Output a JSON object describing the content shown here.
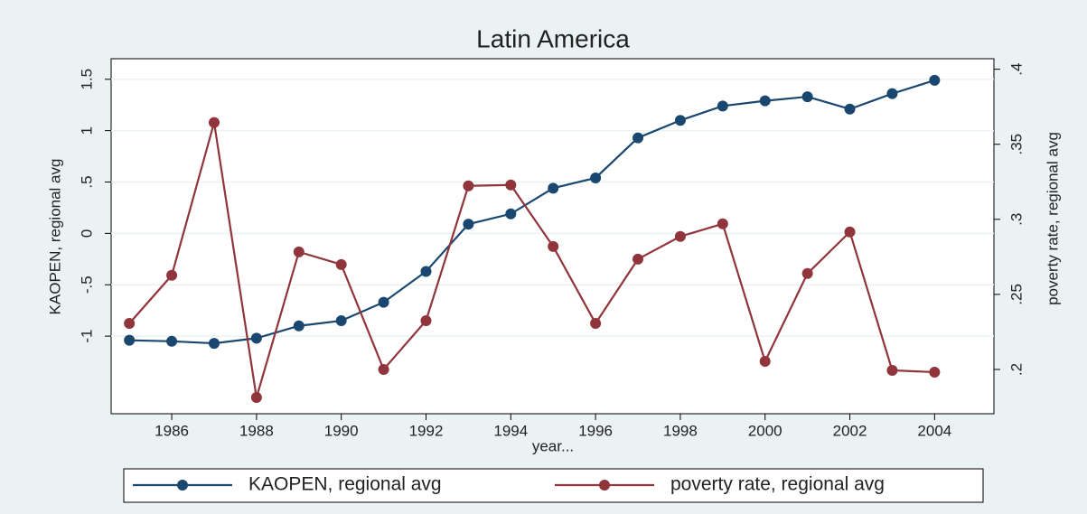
{
  "chart_data": {
    "type": "line",
    "title": "Latin America",
    "x_label": "year...",
    "x": [
      1985,
      1986,
      1987,
      1988,
      1989,
      1990,
      1991,
      1992,
      1993,
      1994,
      1995,
      1996,
      1997,
      1998,
      1999,
      2000,
      2001,
      2002,
      2003,
      2004
    ],
    "xlim": [
      1984.57,
      2005.4
    ],
    "xticks": [
      1986,
      1988,
      1990,
      1992,
      1994,
      1996,
      1998,
      2000,
      2002,
      2004
    ],
    "y_label": "KAOPEN, regional avg",
    "ylim": [
      -1.755,
      1.7
    ],
    "yticks": [
      {
        "value": -1,
        "label": "-1"
      },
      {
        "value": -0.5,
        "label": "-.5"
      },
      0,
      {
        "value": 0.5,
        "label": ".5"
      },
      1,
      1.5
    ],
    "y2_label": "poverty rate, regional avg",
    "y2lim": [
      0.1705,
      0.407
    ],
    "y2ticks": [
      {
        "value": 0.2,
        "label": ".2"
      },
      {
        "value": 0.25,
        "label": ".25"
      },
      {
        "value": 0.3,
        "label": ".3"
      },
      {
        "value": 0.35,
        "label": ".35"
      },
      {
        "value": 0.4,
        "label": ".4"
      }
    ],
    "grid": true,
    "legend": "bottom",
    "series": [
      {
        "name": "KAOPEN, regional avg",
        "color": "#1a476f",
        "values": [
          -1.04,
          -1.05,
          -1.07,
          -1.02,
          -0.9,
          -0.85,
          -0.67,
          -0.37,
          0.09,
          0.19,
          0.44,
          0.54,
          0.93,
          1.1,
          1.24,
          1.29,
          1.33,
          1.21,
          1.36,
          1.49
        ]
      },
      {
        "name": "poverty rate, regional avg",
        "color": "#90353b",
        "axis": "y2",
        "values": [
          0.2307,
          0.2627,
          0.3645,
          0.1813,
          0.2783,
          0.2699,
          0.2,
          0.2325,
          0.3223,
          0.3229,
          0.2819,
          0.2307,
          0.2735,
          0.2886,
          0.297,
          0.2054,
          0.2639,
          0.2916,
          0.1994,
          0.1982
        ]
      }
    ]
  }
}
